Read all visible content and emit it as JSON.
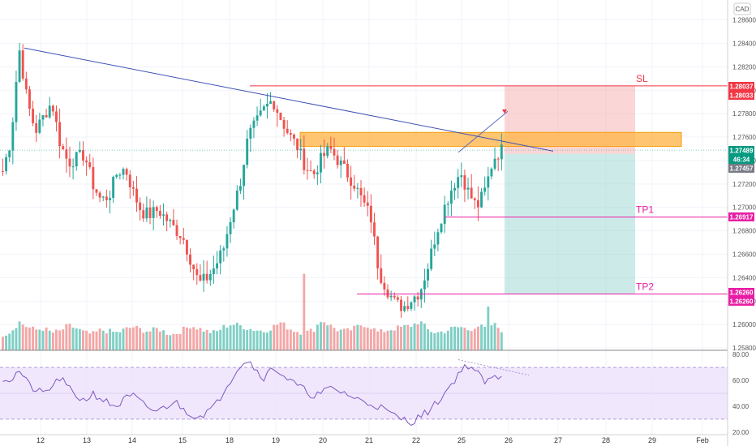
{
  "chart_data": {
    "type": "candlestick",
    "currency": "CAD",
    "y_ticks": [
      "1.28600",
      "1.28400",
      "1.28200",
      "1.28000",
      "1.27800",
      "1.27600",
      "1.27400",
      "1.27200",
      "1.27000",
      "1.26800",
      "1.26600",
      "1.26400",
      "1.26200",
      "1.26000",
      "1.25800"
    ],
    "ylim": [
      1.2578,
      1.2877
    ],
    "x_ticks": [
      "12",
      "13",
      "14",
      "15",
      "18",
      "19",
      "20",
      "21",
      "22",
      "25",
      "26",
      "27",
      "28",
      "29",
      "Feb"
    ],
    "price_tags": [
      {
        "label": "1.28037",
        "value": 1.28037,
        "color": "#f23645"
      },
      {
        "label": "1.28033",
        "value": 1.28033,
        "color": "#f23645"
      },
      {
        "label": "1.27489",
        "value": 1.27489,
        "color": "#089981"
      },
      {
        "label": "46:34",
        "value": 1.27457,
        "color": "#089981"
      },
      {
        "label": "1.27457",
        "value": 1.27457,
        "color": "#787b86"
      },
      {
        "label": "1.26917",
        "value": 1.26917,
        "color": "#e91ea4"
      },
      {
        "label": "1.26260",
        "value": 1.2626,
        "color": "#e91ea4"
      },
      {
        "label": "1.26260",
        "value": 1.2626,
        "color": "#e91ea4"
      }
    ],
    "levels": [
      {
        "name": "SL",
        "value": 1.28037,
        "color": "#f23645"
      },
      {
        "name": "TP1",
        "value": 1.26917,
        "color": "#e91ea4"
      },
      {
        "name": "TP2",
        "value": 1.2626,
        "color": "#e91ea4"
      }
    ],
    "resistance_zone": [
      1.2752,
      1.2764
    ],
    "entry_price": 1.27457,
    "price_path": [
      1.2731,
      1.2758,
      1.2836,
      1.279,
      1.2765,
      1.2778,
      1.279,
      1.2755,
      1.2738,
      1.2742,
      1.2745,
      1.272,
      1.2706,
      1.271,
      1.273,
      1.2733,
      1.2712,
      1.2696,
      1.2694,
      1.2698,
      1.269,
      1.2682,
      1.2675,
      1.2655,
      1.2635,
      1.264,
      1.265,
      1.2665,
      1.2695,
      1.272,
      1.276,
      1.2772,
      1.2784,
      1.2792,
      1.2776,
      1.2762,
      1.2752,
      1.2735,
      1.2728,
      1.2742,
      1.275,
      1.274,
      1.273,
      1.272,
      1.2705,
      1.2692,
      1.2645,
      1.263,
      1.2618,
      1.2615,
      1.2622,
      1.2628,
      1.265,
      1.2678,
      1.27,
      1.2718,
      1.273,
      1.2712,
      1.27,
      1.2715,
      1.2742,
      1.2749
    ],
    "volume_path": [
      18,
      22,
      35,
      28,
      24,
      26,
      20,
      22,
      30,
      26,
      20,
      18,
      24,
      22,
      20,
      25,
      28,
      24,
      22,
      26,
      20,
      18,
      24,
      30,
      26,
      22,
      20,
      28,
      32,
      30,
      26,
      24,
      22,
      28,
      34,
      26,
      22,
      20,
      24,
      38,
      30,
      24,
      22,
      26,
      32,
      28,
      20,
      24,
      26,
      28,
      30,
      36,
      24,
      20,
      22,
      26,
      28,
      24,
      30,
      26,
      32,
      24
    ],
    "rsi_ticks": [
      "80.00",
      "60.00",
      "40.00",
      "20.00"
    ],
    "rsi_ylim": [
      18,
      82
    ],
    "rsi_band": [
      30,
      70
    ],
    "rsi_path": [
      62,
      60,
      68,
      58,
      52,
      50,
      55,
      62,
      54,
      48,
      44,
      50,
      46,
      42,
      40,
      46,
      48,
      42,
      38,
      36,
      40,
      44,
      38,
      34,
      32,
      36,
      40,
      52,
      62,
      72,
      76,
      68,
      62,
      70,
      66,
      60,
      56,
      52,
      48,
      50,
      54,
      52,
      50,
      46,
      44,
      42,
      40,
      36,
      32,
      30,
      28,
      32,
      36,
      42,
      50,
      58,
      68,
      72,
      66,
      58,
      62,
      64
    ]
  }
}
